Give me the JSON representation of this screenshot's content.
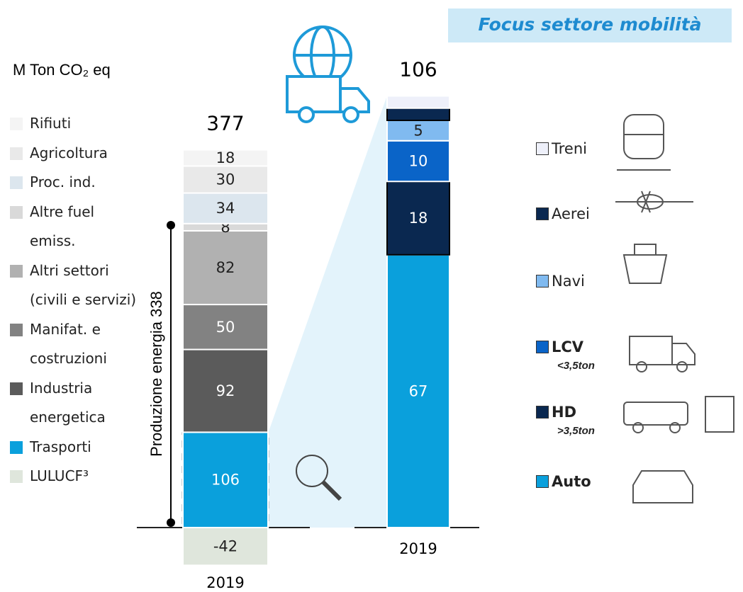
{
  "title": "Focus settore mobilità",
  "unit": "M Ton CO₂ eq",
  "annotation": "Produzione energia 338",
  "chart_data": [
    {
      "type": "stacked_bar",
      "categories": [
        "2019"
      ],
      "total": 377,
      "series": [
        {
          "name": "Rifiuti",
          "color": "#f4f4f4",
          "values": [
            18
          ]
        },
        {
          "name": "Agricoltura",
          "color": "#e9e9e9",
          "values": [
            30
          ]
        },
        {
          "name": "Proc. ind.",
          "color": "#dce6ee",
          "values": [
            34
          ]
        },
        {
          "name": "Altre fuel emiss.",
          "color": "#d9d9d9",
          "values": [
            8
          ]
        },
        {
          "name": "Altri settori (civili e servizi)",
          "color": "#b1b1b1",
          "values": [
            82
          ]
        },
        {
          "name": "Manifat. e costruzioni",
          "color": "#828282",
          "values": [
            50
          ]
        },
        {
          "name": "Industria energetica",
          "color": "#5b5b5b",
          "values": [
            92
          ]
        },
        {
          "name": "Trasporti",
          "color": "#0aa0dc",
          "values": [
            106
          ]
        },
        {
          "name": "LULUCF³",
          "color": "#dfe6dc",
          "values": [
            -42
          ]
        }
      ]
    },
    {
      "type": "stacked_bar",
      "categories": [
        "2019"
      ],
      "total": 106,
      "series": [
        {
          "name": "Treni",
          "color": "#eef0fa",
          "values": [
            3
          ],
          "value_labels": [
            null
          ]
        },
        {
          "name": "Aerei",
          "color": "#0a2850",
          "values": [
            3
          ],
          "value_labels": [
            null
          ]
        },
        {
          "name": "Navi",
          "color": "#80baf0",
          "values": [
            5
          ]
        },
        {
          "name": "LCV",
          "note": "<3,5ton",
          "bold": true,
          "color": "#0a64c8",
          "values": [
            10
          ]
        },
        {
          "name": "HD",
          "note": ">3,5ton",
          "bold": true,
          "color": "#0a2850",
          "values": [
            18
          ]
        },
        {
          "name": "Auto",
          "bold": true,
          "color": "#0aa0dc",
          "values": [
            67
          ]
        }
      ]
    }
  ]
}
